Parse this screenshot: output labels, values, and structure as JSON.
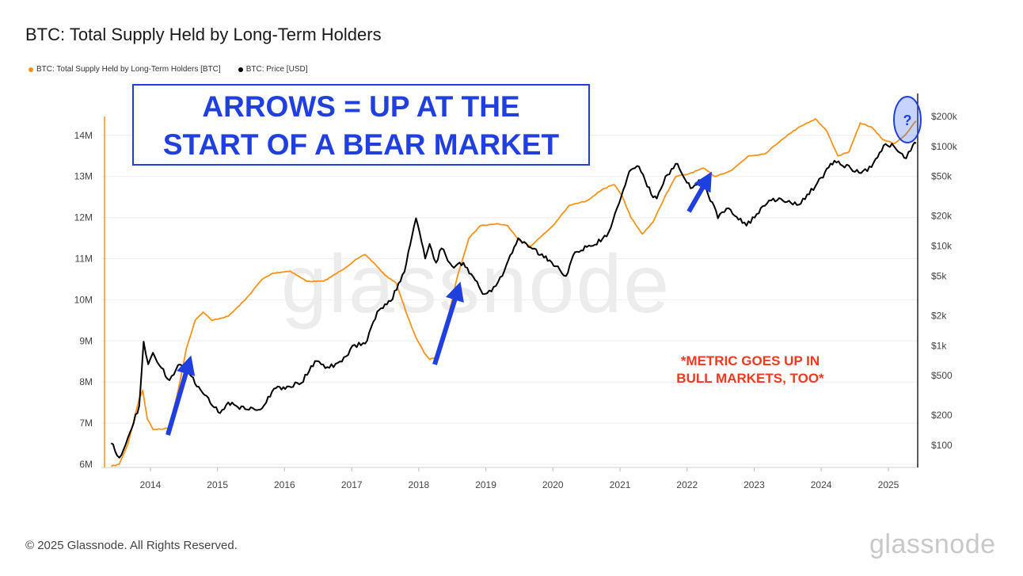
{
  "title": "BTC: Total Supply Held by Long-Term Holders",
  "legend": [
    {
      "label": "BTC: Total Supply Held by Long-Term Holders [BTC]",
      "color": "#f7931a"
    },
    {
      "label": "BTC: Price [USD]",
      "color": "#000000"
    }
  ],
  "annotations": {
    "callout_line1": "ARROWS = UP AT THE",
    "callout_line2": "START OF A BEAR MARKET",
    "note_line1": "*METRIC GOES UP IN",
    "note_line2": "BULL MARKETS, TOO*",
    "question": "?"
  },
  "watermark": "glassnode",
  "footer": {
    "copyright": "© 2025 Glassnode. All Rights Reserved.",
    "brand": "glassnode"
  },
  "colors": {
    "supply": "#f7931a",
    "price": "#000000",
    "arrow": "#1f3fe0",
    "note": "#f0391e"
  },
  "chart_data": {
    "type": "line",
    "x_ticks": [
      "2014",
      "2015",
      "2016",
      "2017",
      "2018",
      "2019",
      "2020",
      "2021",
      "2022",
      "2023",
      "2024",
      "2025"
    ],
    "y_left_ticks": [
      "6M",
      "7M",
      "8M",
      "9M",
      "10M",
      "11M",
      "12M",
      "13M",
      "14M"
    ],
    "y_right_ticks": [
      "$100",
      "$200",
      "$500",
      "$1k",
      "$2k",
      "$5k",
      "$10k",
      "$20k",
      "$50k",
      "$100k",
      "$200k"
    ],
    "y_left_range": [
      6000000,
      14200000
    ],
    "y_right_scale": "log",
    "series": [
      {
        "axis": "left",
        "points": [
          [
            "2013-06-01",
            5950000.0
          ],
          [
            "2013-07-15",
            6000000.0
          ],
          [
            "2013-09-01",
            6500000.0
          ],
          [
            "2013-11-01",
            7600000.0
          ],
          [
            "2013-11-20",
            7800000.0
          ],
          [
            "2013-12-15",
            7100000.0
          ],
          [
            "2014-01-15",
            6850000.0
          ],
          [
            "2014-03-01",
            6850000.0
          ],
          [
            "2014-04-15",
            6900000.0
          ],
          [
            "2014-06-01",
            7800000.0
          ],
          [
            "2014-07-15",
            8800000.0
          ],
          [
            "2014-09-01",
            9500000.0
          ],
          [
            "2014-10-15",
            9700000.0
          ],
          [
            "2014-12-01",
            9500000.0
          ],
          [
            "2015-03-01",
            9600000.0
          ],
          [
            "2015-06-01",
            10000000.0
          ],
          [
            "2015-09-01",
            10500000.0
          ],
          [
            "2015-11-01",
            10650000.0
          ],
          [
            "2016-02-01",
            10700000.0
          ],
          [
            "2016-05-01",
            10450000.0
          ],
          [
            "2016-08-01",
            10450000.0
          ],
          [
            "2016-11-01",
            10700000.0
          ],
          [
            "2017-02-01",
            11000000.0
          ],
          [
            "2017-03-15",
            11100000.0
          ],
          [
            "2017-05-01",
            10900000.0
          ],
          [
            "2017-07-01",
            10600000.0
          ],
          [
            "2017-09-01",
            10400000.0
          ],
          [
            "2017-11-01",
            9600000.0
          ],
          [
            "2017-12-15",
            9100000.0
          ],
          [
            "2018-02-01",
            8700000.0
          ],
          [
            "2018-03-01",
            8550000.0
          ],
          [
            "2018-04-01",
            8600000.0
          ],
          [
            "2018-06-01",
            9400000.0
          ],
          [
            "2018-08-01",
            10600000.0
          ],
          [
            "2018-10-01",
            11500000.0
          ],
          [
            "2018-12-01",
            11800000.0
          ],
          [
            "2019-03-01",
            11850000.0
          ],
          [
            "2019-05-01",
            11800000.0
          ],
          [
            "2019-07-01",
            11450000.0
          ],
          [
            "2019-09-01",
            11300000.0
          ],
          [
            "2019-11-01",
            11550000.0
          ],
          [
            "2020-01-01",
            11800000.0
          ],
          [
            "2020-04-01",
            12300000.0
          ],
          [
            "2020-07-01",
            12400000.0
          ],
          [
            "2020-10-01",
            12700000.0
          ],
          [
            "2020-12-01",
            12800000.0
          ],
          [
            "2021-01-15",
            12500000.0
          ],
          [
            "2021-03-01",
            12000000.0
          ],
          [
            "2021-05-01",
            11600000.0
          ],
          [
            "2021-07-01",
            11900000.0
          ],
          [
            "2021-09-01",
            12500000.0
          ],
          [
            "2021-11-01",
            13000000.0
          ],
          [
            "2022-01-01",
            13050000.0
          ],
          [
            "2022-04-01",
            13200000.0
          ],
          [
            "2022-06-01",
            13000000.0
          ],
          [
            "2022-09-01",
            13150000.0
          ],
          [
            "2022-12-01",
            13500000.0
          ],
          [
            "2023-03-01",
            13550000.0
          ],
          [
            "2023-06-01",
            13900000.0
          ],
          [
            "2023-09-01",
            14200000.0
          ],
          [
            "2023-12-01",
            14400000.0
          ],
          [
            "2024-02-01",
            14100000.0
          ],
          [
            "2024-04-01",
            13500000.0
          ],
          [
            "2024-06-01",
            13600000.0
          ],
          [
            "2024-08-01",
            14300000.0
          ],
          [
            "2024-10-01",
            14200000.0
          ],
          [
            "2024-12-01",
            13900000.0
          ],
          [
            "2025-02-01",
            13800000.0
          ],
          [
            "2025-04-01",
            14000000.0
          ],
          [
            "2025-06-01",
            14350000.0
          ]
        ]
      },
      {
        "axis": "right",
        "points": [
          [
            "2013-06-01",
            105
          ],
          [
            "2013-07-15",
            75
          ],
          [
            "2013-09-01",
            120
          ],
          [
            "2013-11-01",
            250
          ],
          [
            "2013-11-25",
            1100
          ],
          [
            "2013-12-20",
            650
          ],
          [
            "2014-01-15",
            850
          ],
          [
            "2014-03-01",
            600
          ],
          [
            "2014-04-15",
            450
          ],
          [
            "2014-06-01",
            640
          ],
          [
            "2014-08-01",
            520
          ],
          [
            "2014-10-01",
            360
          ],
          [
            "2015-01-15",
            210
          ],
          [
            "2015-03-01",
            270
          ],
          [
            "2015-06-01",
            230
          ],
          [
            "2015-09-01",
            235
          ],
          [
            "2015-11-05",
            370
          ],
          [
            "2016-01-15",
            390
          ],
          [
            "2016-04-01",
            420
          ],
          [
            "2016-06-15",
            700
          ],
          [
            "2016-09-01",
            600
          ],
          [
            "2016-12-01",
            780
          ],
          [
            "2017-01-05",
            1000
          ],
          [
            "2017-03-15",
            1050
          ],
          [
            "2017-05-20",
            2200
          ],
          [
            "2017-08-01",
            2800
          ],
          [
            "2017-10-15",
            5500
          ],
          [
            "2017-12-17",
            19000
          ],
          [
            "2018-02-05",
            7500
          ],
          [
            "2018-03-01",
            10500
          ],
          [
            "2018-04-05",
            6800
          ],
          [
            "2018-05-05",
            9500
          ],
          [
            "2018-07-01",
            6300
          ],
          [
            "2018-09-01",
            6800
          ],
          [
            "2018-11-25",
            3900
          ],
          [
            "2018-12-15",
            3300
          ],
          [
            "2019-02-01",
            3500
          ],
          [
            "2019-04-01",
            5000
          ],
          [
            "2019-06-26",
            12000
          ],
          [
            "2019-09-01",
            9700
          ],
          [
            "2019-12-15",
            7200
          ],
          [
            "2020-03-13",
            5000
          ],
          [
            "2020-05-01",
            8700
          ],
          [
            "2020-07-26",
            10000
          ],
          [
            "2020-10-20",
            12500
          ],
          [
            "2020-12-27",
            27000
          ],
          [
            "2021-02-20",
            56000
          ],
          [
            "2021-04-14",
            63000
          ],
          [
            "2021-06-20",
            33000
          ],
          [
            "2021-07-20",
            30000
          ],
          [
            "2021-09-05",
            50000
          ],
          [
            "2021-11-10",
            67000
          ],
          [
            "2022-01-20",
            38000
          ],
          [
            "2022-03-28",
            47000
          ],
          [
            "2022-06-18",
            19000
          ],
          [
            "2022-08-15",
            24000
          ],
          [
            "2022-11-20",
            16000
          ],
          [
            "2023-01-15",
            21000
          ],
          [
            "2023-04-15",
            30000
          ],
          [
            "2023-09-01",
            26000
          ],
          [
            "2023-12-01",
            40000
          ],
          [
            "2024-03-13",
            72000
          ],
          [
            "2024-08-05",
            54000
          ],
          [
            "2024-10-01",
            62000
          ],
          [
            "2024-12-17",
            106000
          ],
          [
            "2025-02-01",
            100000
          ],
          [
            "2025-04-08",
            76000
          ],
          [
            "2025-05-15",
            104000
          ],
          [
            "2025-06-01",
            108000
          ]
        ]
      }
    ]
  }
}
